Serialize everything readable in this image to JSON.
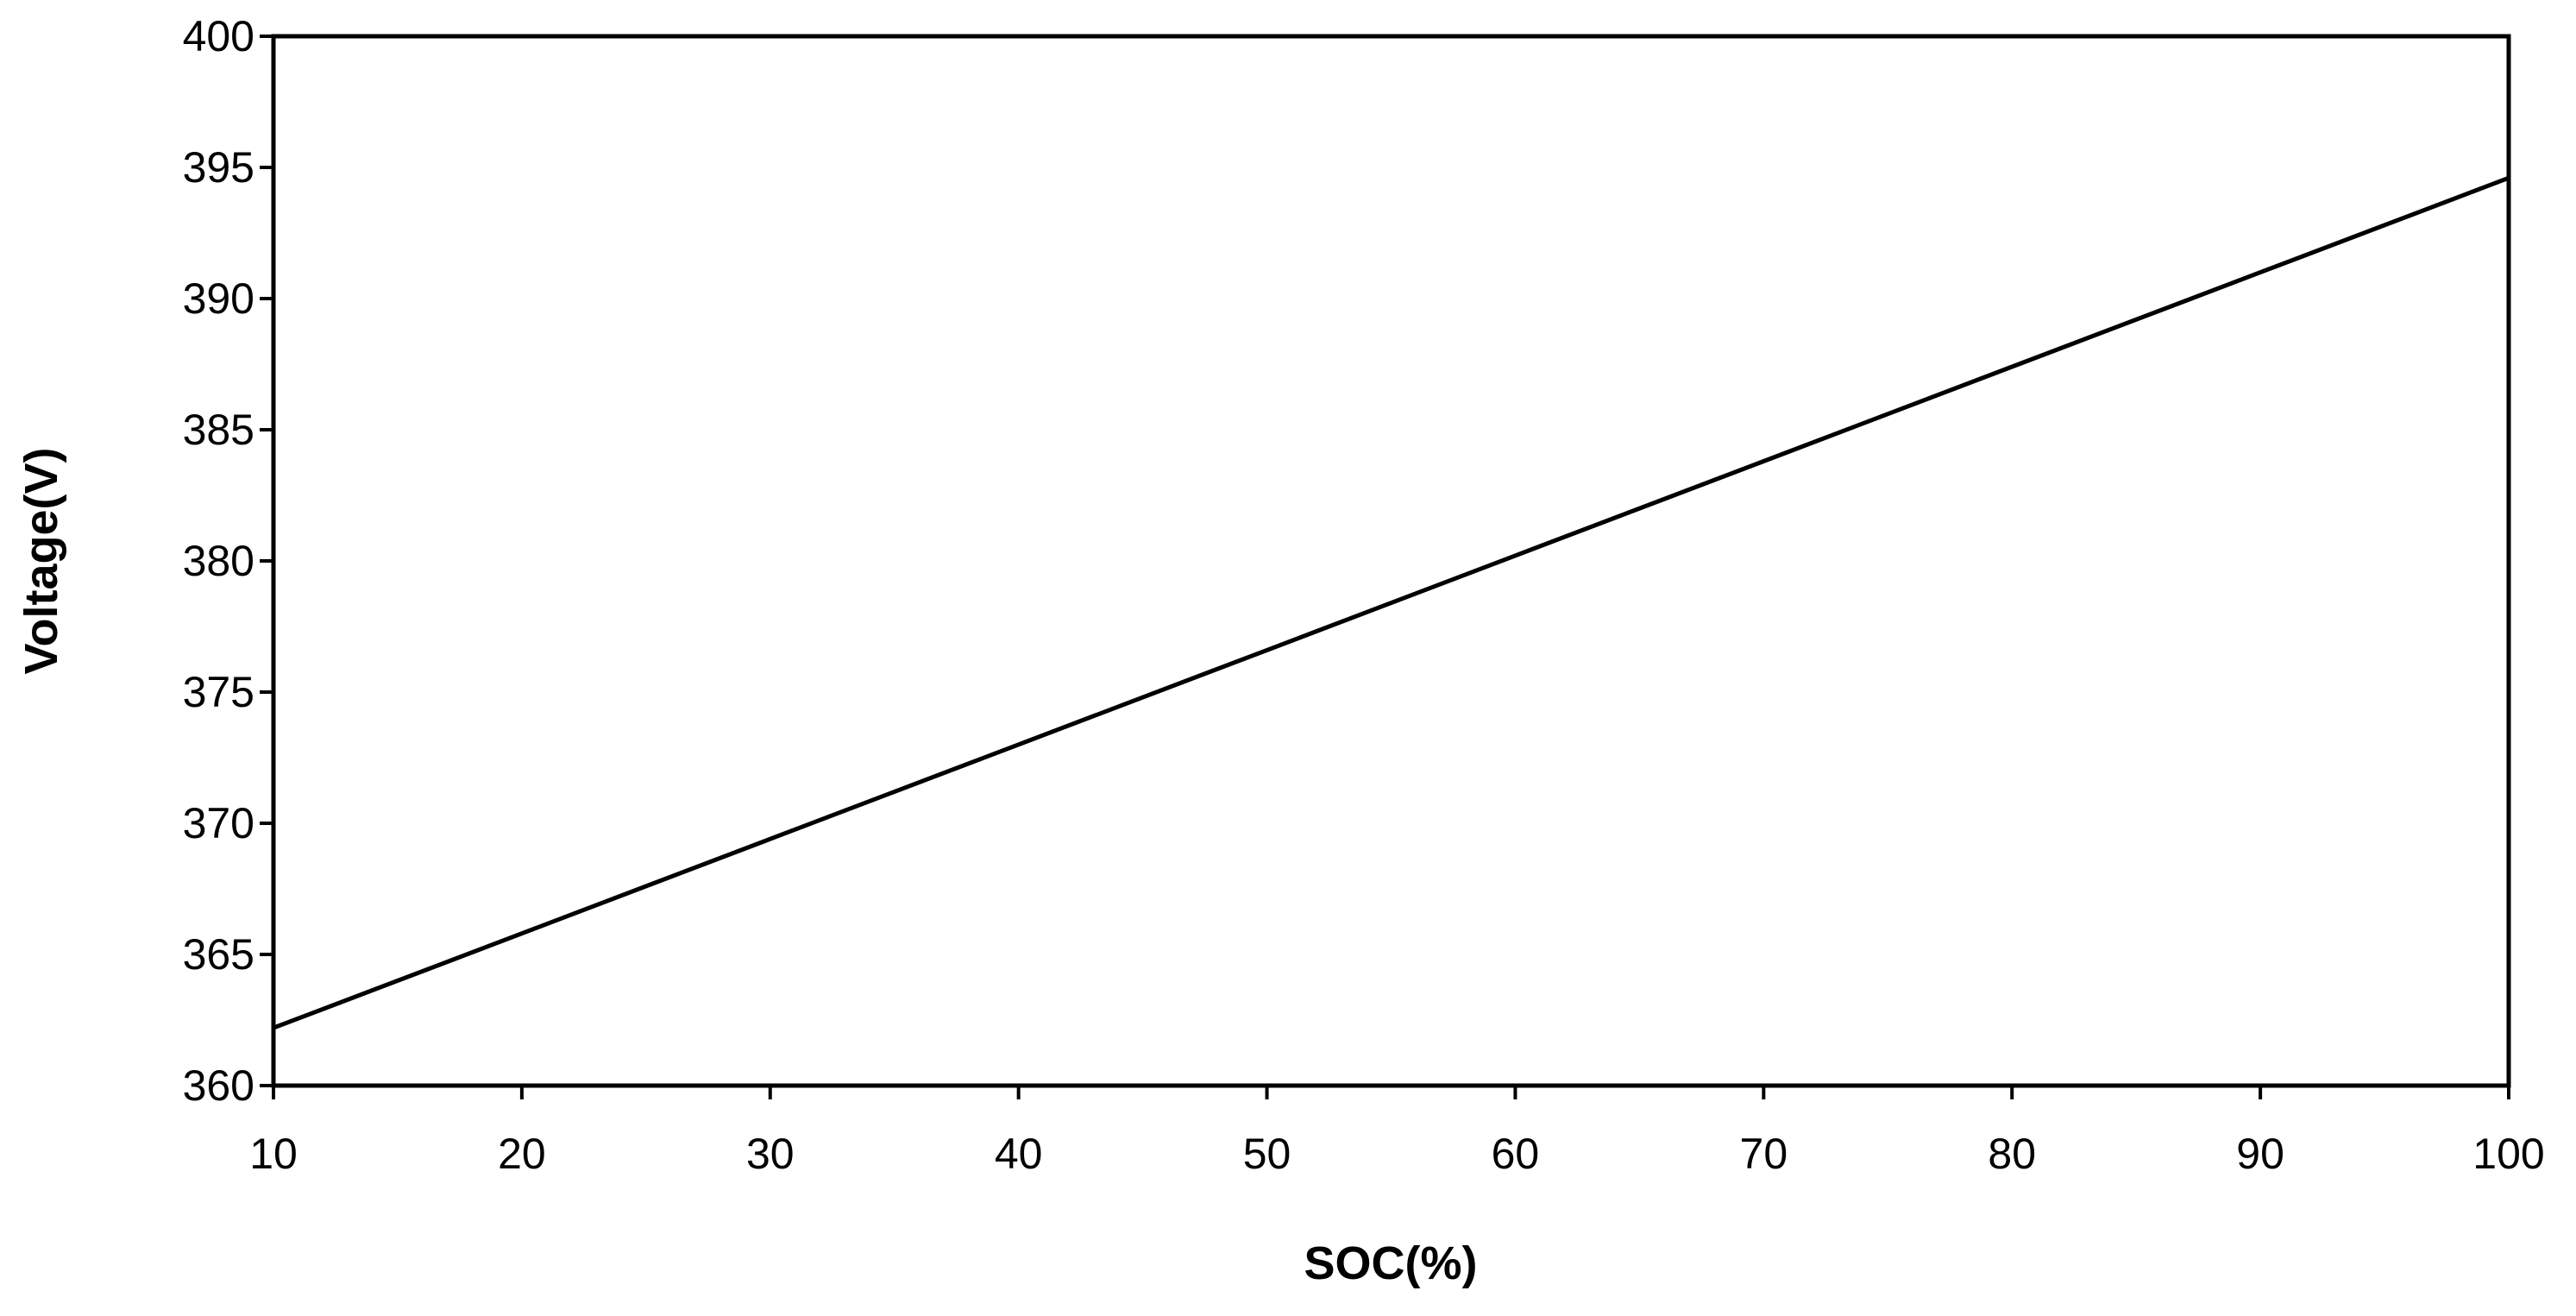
{
  "chart_data": {
    "type": "line",
    "title": "",
    "xlabel": "SOC(%)",
    "ylabel": "Voltage(V)",
    "xlim": [
      10,
      100
    ],
    "ylim": [
      360,
      400
    ],
    "x_ticks": [
      "10",
      "20",
      "30",
      "40",
      "50",
      "60",
      "70",
      "80",
      "90",
      "100"
    ],
    "y_ticks": [
      "360",
      "365",
      "370",
      "375",
      "380",
      "385",
      "390",
      "395",
      "400"
    ],
    "grid": false,
    "legend": "none",
    "line_color": "#000000",
    "series": [
      {
        "x": [
          10,
          20,
          30,
          40,
          50,
          60,
          70,
          80,
          90,
          100
        ],
        "y": [
          362.2,
          365.8,
          369.4,
          373.0,
          376.6,
          380.2,
          383.8,
          387.4,
          391.0,
          394.6
        ]
      }
    ]
  }
}
